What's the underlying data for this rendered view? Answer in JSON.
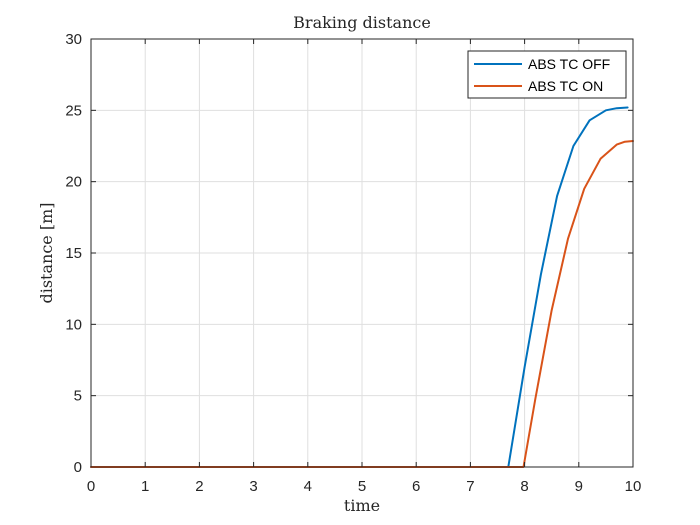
{
  "chart_data": {
    "type": "line",
    "title": "Braking distance",
    "xlabel": "time",
    "ylabel": "distance [m]",
    "xlim": [
      0,
      10
    ],
    "ylim": [
      0,
      30
    ],
    "xticks": [
      0,
      1,
      2,
      3,
      4,
      5,
      6,
      7,
      8,
      9,
      10
    ],
    "yticks": [
      0,
      5,
      10,
      15,
      20,
      25,
      30
    ],
    "grid": true,
    "legend_position": "top-right",
    "series": [
      {
        "name": "ABS TC OFF",
        "color": "#0072BD",
        "x": [
          0,
          7.7,
          7.7,
          8.0,
          8.3,
          8.6,
          8.9,
          9.2,
          9.5,
          9.7,
          9.9
        ],
        "y": [
          0,
          0,
          0,
          7.0,
          13.5,
          19.0,
          22.5,
          24.3,
          25.0,
          25.15,
          25.2
        ]
      },
      {
        "name": "ABS TC ON",
        "color": "#D95319",
        "x": [
          0,
          7.98,
          7.98,
          8.2,
          8.5,
          8.8,
          9.1,
          9.4,
          9.7,
          9.85,
          10.0
        ],
        "y": [
          0,
          0,
          0,
          4.8,
          11.0,
          16.0,
          19.5,
          21.6,
          22.6,
          22.8,
          22.85
        ]
      }
    ]
  }
}
